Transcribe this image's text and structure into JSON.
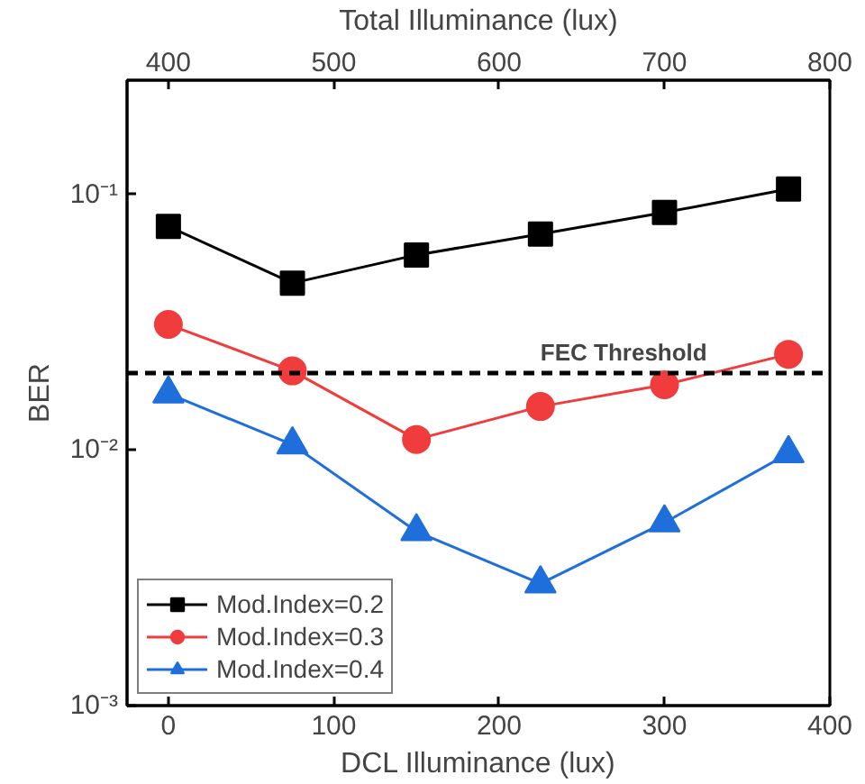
{
  "chart_data": {
    "type": "line",
    "xlabel": "DCL Illuminance (lux)",
    "ylabel": "BER",
    "x2label": "Total Illuminance (lux)",
    "x": [
      0,
      75,
      150,
      225,
      300,
      375
    ],
    "series": [
      {
        "name": "Mod.Index=0.2",
        "color": "#000000",
        "marker": "square",
        "values": [
          0.075,
          0.045,
          0.058,
          0.07,
          0.085,
          0.105
        ]
      },
      {
        "name": "Mod.Index=0.3",
        "color": "#f03c3c",
        "marker": "circle",
        "values": [
          0.031,
          0.0204,
          0.011,
          0.0148,
          0.018,
          0.0237
        ]
      },
      {
        "name": "Mod.Index=0.4",
        "color": "#1e6fdc",
        "marker": "triangle",
        "values": [
          0.0166,
          0.0105,
          0.0048,
          0.003,
          0.0052,
          0.0097
        ]
      }
    ],
    "xlim": [
      -25,
      400
    ],
    "xticks": [
      0,
      100,
      200,
      300,
      400
    ],
    "x2lim": [
      375,
      800
    ],
    "x2ticks": [
      400,
      500,
      600,
      700,
      800
    ],
    "ylim": [
      0.001,
      0.28
    ],
    "log": "y",
    "yticks": [
      {
        "value": 0.001,
        "label": "10⁻³"
      },
      {
        "value": 0.01,
        "label": "10⁻²"
      },
      {
        "value": 0.1,
        "label": "10⁻¹"
      }
    ],
    "ref_lines": [
      {
        "axis": "y",
        "value": 0.02,
        "label": "FEC Threshold",
        "color": "#000000",
        "line_style": "dashed"
      }
    ],
    "legend": "bottom left",
    "grid": false,
    "line_style": "solid"
  }
}
